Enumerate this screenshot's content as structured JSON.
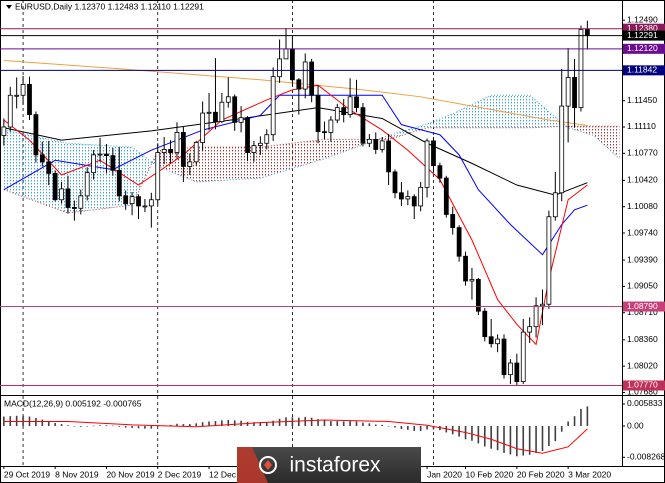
{
  "chart_data": [
    {
      "type": "candlestick",
      "title": "EURUSD,Daily  1.12370 1.12483 1.12110 1.12291",
      "categories": [
        "29 Oct 2019",
        null,
        null,
        null,
        null,
        null,
        null,
        null,
        "8 Nov 2019",
        null,
        null,
        null,
        null,
        null,
        null,
        null,
        "20 Nov 2019",
        null,
        null,
        null,
        null,
        null,
        null,
        null,
        "2 Dec 2019",
        null,
        null,
        null,
        null,
        null,
        null,
        null,
        "12 Dec 2019",
        null,
        null,
        null,
        null,
        null,
        null,
        null,
        null,
        null,
        null,
        null,
        null,
        null,
        null,
        null,
        null,
        null,
        null,
        null,
        null,
        null,
        null,
        null,
        null,
        null,
        null,
        null,
        null,
        null,
        null,
        null,
        null,
        null,
        "Jan 2020",
        null,
        null,
        null,
        null,
        null,
        "10 Feb 2020",
        null,
        null,
        null,
        null,
        null,
        null,
        null,
        "20 Feb 2020",
        null,
        null,
        null,
        null,
        null,
        null,
        null,
        "3 Mar 2020",
        null,
        null,
        null
      ],
      "open": [
        1.11,
        1.1111,
        1.1152,
        1.1152,
        1.1166,
        1.1127,
        1.1075,
        1.1066,
        1.1051,
        1.1017,
        1.1031,
        1.1007,
        1.1006,
        1.1022,
        1.1052,
        1.1075,
        1.1076,
        1.1074,
        1.1055,
        1.1022,
        1.1012,
        1.1021,
        1.1009,
        1.1009,
        1.1017,
        1.1078,
        1.1082,
        1.1078,
        1.1104,
        1.106,
        1.1066,
        1.1091,
        1.1129,
        1.113,
        1.1118,
        1.1143,
        1.115,
        1.1117,
        1.1123,
        1.1078,
        1.1087,
        1.109,
        1.1101,
        1.1176,
        1.1199,
        1.1212,
        1.1172,
        1.116,
        1.1195,
        1.1152,
        1.1105,
        1.1104,
        1.112,
        1.1136,
        1.1127,
        1.115,
        1.1136,
        1.109,
        1.1095,
        1.1082,
        1.1093,
        1.1053,
        1.1026,
        1.1018,
        1.1021,
        1.1009,
        1.1033,
        1.1093,
        1.1061,
        1.1045,
        1.0998,
        1.0981,
        1.0944,
        1.0912,
        1.0914,
        1.0873,
        1.084,
        1.0831,
        1.0837,
        1.0791,
        1.0806,
        1.0782,
        1.0846,
        1.0853,
        1.088,
        1.0882,
        1.0995,
        1.1026,
        1.1138,
        1.1175,
        1.1136,
        1.1237
      ],
      "high": [
        1.1122,
        1.1163,
        1.1175,
        1.1177,
        1.1176,
        1.1131,
        1.1092,
        1.1093,
        1.1055,
        1.104,
        1.1048,
        1.1016,
        1.103,
        1.1059,
        1.1081,
        1.1097,
        1.1089,
        1.1084,
        1.1085,
        1.1029,
        1.1027,
        1.1024,
        1.1018,
        1.1026,
        1.109,
        1.1098,
        1.1094,
        1.1117,
        1.1111,
        1.1077,
        1.1093,
        1.1144,
        1.1155,
        1.12,
        1.1155,
        1.1175,
        1.1153,
        1.1138,
        1.1125,
        1.1093,
        1.1099,
        1.1108,
        1.1188,
        1.1224,
        1.1239,
        1.1229,
        1.1174,
        1.1206,
        1.1199,
        1.1165,
        1.1118,
        1.1125,
        1.1141,
        1.1147,
        1.1174,
        1.1172,
        1.1142,
        1.1102,
        1.1104,
        1.1098,
        1.1102,
        1.1056,
        1.104,
        1.1029,
        1.1024,
        1.104,
        1.1096,
        1.1098,
        1.1065,
        1.1048,
        1.1008,
        1.0984,
        1.095,
        1.0929,
        1.0916,
        1.0877,
        1.0863,
        1.0843,
        1.0843,
        1.0811,
        1.0818,
        1.0863,
        1.0865,
        1.0891,
        1.0901,
        1.1003,
        1.1053,
        1.1186,
        1.1213,
        1.1199,
        1.1242,
        1.12483
      ],
      "low": [
        1.1087,
        1.1105,
        1.1135,
        1.114,
        1.112,
        1.1065,
        1.106,
        1.1036,
        1.1015,
        1.1012,
        1.0999,
        1.099,
        1.0998,
        1.1016,
        1.1043,
        1.1066,
        1.1051,
        1.1048,
        1.1015,
        1.1004,
        1.0997,
        1.0992,
        1.1001,
        1.0981,
        1.1011,
        1.1063,
        1.1064,
        1.107,
        1.104,
        1.1049,
        1.1061,
        1.108,
        1.1107,
        1.1108,
        1.1116,
        1.1136,
        1.1106,
        1.1104,
        1.1067,
        1.1066,
        1.1075,
        1.1082,
        1.1093,
        1.1168,
        1.1199,
        1.1164,
        1.1127,
        1.1148,
        1.1143,
        1.109,
        1.1095,
        1.1092,
        1.1116,
        1.1117,
        1.1123,
        1.113,
        1.1086,
        1.1085,
        1.1076,
        1.1078,
        1.1036,
        1.1019,
        1.1009,
        1.101,
        1.0992,
        1.1002,
        1.102,
        1.1052,
        1.1039,
        1.0994,
        1.0972,
        1.0937,
        1.0906,
        1.0888,
        1.0868,
        1.0834,
        1.0826,
        1.082,
        1.0786,
        1.0779,
        1.0777,
        1.0779,
        1.0832,
        1.0839,
        1.0855,
        1.0876,
        1.099,
        1.1015,
        1.1091,
        1.111,
        1.1131,
        1.1211
      ],
      "close": [
        1.1111,
        1.1152,
        1.1152,
        1.1166,
        1.1127,
        1.1075,
        1.1066,
        1.1051,
        1.1017,
        1.1031,
        1.1007,
        1.1006,
        1.1022,
        1.1052,
        1.1075,
        1.1076,
        1.1074,
        1.1055,
        1.1022,
        1.1012,
        1.1021,
        1.1009,
        1.1009,
        1.1017,
        1.1078,
        1.1082,
        1.1078,
        1.1104,
        1.106,
        1.1066,
        1.1091,
        1.1129,
        1.113,
        1.1118,
        1.1143,
        1.115,
        1.1117,
        1.1123,
        1.1078,
        1.1087,
        1.109,
        1.1101,
        1.1176,
        1.1199,
        1.1212,
        1.1172,
        1.116,
        1.1195,
        1.1152,
        1.1105,
        1.1104,
        1.112,
        1.1136,
        1.1127,
        1.115,
        1.1136,
        1.109,
        1.1095,
        1.1082,
        1.1093,
        1.1053,
        1.1026,
        1.1018,
        1.1021,
        1.1009,
        1.1033,
        1.1093,
        1.1061,
        1.1045,
        1.0998,
        1.0981,
        1.0944,
        1.0912,
        1.0914,
        1.0873,
        1.084,
        1.0831,
        1.0837,
        1.0791,
        1.0806,
        1.0782,
        1.0846,
        1.0853,
        1.088,
        1.0882,
        1.0995,
        1.1026,
        1.1138,
        1.1175,
        1.1136,
        1.1237,
        1.12291
      ],
      "bull_color": "#ffffff",
      "bear_color": "#000000",
      "outline_color": "#000000",
      "xlim": [
        -0.6,
        96.4
      ],
      "ylim": [
        1.0766,
        1.1257
      ],
      "yticks": [
        {
          "value": 1.1249,
          "label": "1.12490"
        },
        {
          "value": 1.1145,
          "label": "1.11450"
        },
        {
          "value": 1.1111,
          "label": "1.11110"
        },
        {
          "value": 1.1077,
          "label": "1.10770"
        },
        {
          "value": 1.1042,
          "label": "1.10420"
        },
        {
          "value": 1.1008,
          "label": "1.10080"
        },
        {
          "value": 1.0974,
          "label": "1.09740"
        },
        {
          "value": 1.0939,
          "label": "1.09390"
        },
        {
          "value": 1.0905,
          "label": "1.09050"
        },
        {
          "value": 1.0871,
          "label": "1.08710"
        },
        {
          "value": 1.0836,
          "label": "1.08360"
        },
        {
          "value": 1.0802,
          "label": "1.08020"
        },
        {
          "value": 1.0768,
          "label": "1.07680"
        }
      ],
      "grid": false,
      "xlines": [
        3,
        24,
        45,
        67
      ],
      "levels": [
        {
          "value": 1.1238,
          "label": "1.12380",
          "color": "#8b1a5a"
        },
        {
          "value": 1.12291,
          "label": "1.12291",
          "color": "#000000"
        },
        {
          "value": 1.1212,
          "label": "1.12120",
          "color": "#6a0d91"
        },
        {
          "value": 1.11842,
          "label": "1.11842",
          "color": "#000080"
        },
        {
          "value": 1.0879,
          "label": "1.08790",
          "color": "#c8407a"
        },
        {
          "value": 1.0777,
          "label": "1.07770",
          "color": "#c0305a"
        }
      ],
      "cloud": {
        "x": [
          0,
          10,
          20,
          24,
          30,
          40,
          50,
          60,
          66,
          70,
          76,
          82,
          88,
          92,
          96
        ],
        "a": [
          1.1107,
          1.109,
          1.1085,
          1.106,
          1.104,
          1.1045,
          1.107,
          1.11,
          1.1115,
          1.1128,
          1.1152,
          1.1152,
          1.111,
          1.11,
          1.107
        ],
        "b": [
          1.103,
          1.1,
          1.101,
          1.108,
          1.1085,
          1.1085,
          1.1095,
          1.1095,
          1.111,
          1.111,
          1.111,
          1.111,
          1.1112,
          1.1112,
          1.1112
        ],
        "up_color": "#3aa0e8",
        "down_color": "#b03030"
      },
      "series": [
        {
          "color": "#f0a040",
          "x": [
            0,
            20,
            40,
            55,
            65,
            75,
            85,
            91
          ],
          "values": [
            1.1197,
            1.1185,
            1.1172,
            1.116,
            1.115,
            1.1135,
            1.112,
            1.1113
          ]
        },
        {
          "color": "#000000",
          "x": [
            0,
            9,
            23,
            38,
            49,
            59,
            66,
            73,
            80,
            86,
            91
          ],
          "values": [
            1.111,
            1.1094,
            1.1106,
            1.1123,
            1.1136,
            1.1122,
            1.109,
            1.1064,
            1.1036,
            1.1023,
            1.1039
          ]
        },
        {
          "color": "#0000ff",
          "x": [
            0,
            8,
            17,
            23,
            31,
            40,
            43,
            59,
            62,
            68,
            71,
            74,
            79,
            84,
            87,
            89,
            91
          ],
          "values": [
            1.103,
            1.1068,
            1.1056,
            1.1081,
            1.1107,
            1.1126,
            1.1152,
            1.1152,
            1.1114,
            1.1101,
            1.1075,
            1.103,
            1.0985,
            1.0946,
            1.0985,
            1.1004,
            1.101
          ]
        },
        {
          "color": "#ff0000",
          "x": [
            0,
            4,
            9,
            15,
            21,
            28,
            34,
            41,
            45,
            49,
            54,
            59,
            63,
            68,
            73,
            77,
            80,
            83,
            85,
            88,
            91
          ],
          "values": [
            1.112,
            1.1094,
            1.1049,
            1.1068,
            1.1036,
            1.1075,
            1.112,
            1.1146,
            1.1159,
            1.1165,
            1.1133,
            1.1107,
            1.1081,
            1.1043,
            1.0965,
            1.0888,
            1.0856,
            1.083,
            1.0914,
            1.1017,
            1.1036
          ]
        }
      ]
    },
    {
      "type": "macd",
      "title": "MACD(12,26,9) 0.005192 -0.000765",
      "values": [
        0.0025,
        0.0026,
        0.0027,
        0.0027,
        0.0025,
        0.0021,
        0.0017,
        0.0013,
        0.0008,
        0.0005,
        0.0002,
        -0.0001,
        -0.0002,
        -0.0001,
        0.0001,
        0.0002,
        0.0002,
        0.0001,
        -0.0002,
        -0.0004,
        -0.0005,
        -0.0006,
        -0.0007,
        -0.0007,
        -0.0002,
        0.0001,
        0.0003,
        0.0006,
        0.0005,
        0.0005,
        0.0007,
        0.001,
        0.0012,
        0.0013,
        0.0015,
        0.0016,
        0.0015,
        0.0014,
        0.0011,
        0.001,
        0.0009,
        0.0009,
        0.0014,
        0.0019,
        0.0023,
        0.0023,
        0.0022,
        0.0024,
        0.0022,
        0.0018,
        0.0015,
        0.0013,
        0.0013,
        0.0012,
        0.0013,
        0.0012,
        0.0009,
        0.0007,
        0.0004,
        0.0003,
        0,
        -0.0004,
        -0.0008,
        -0.001,
        -0.0013,
        -0.0013,
        -0.0009,
        -0.0009,
        -0.0011,
        -0.0017,
        -0.0022,
        -0.0028,
        -0.0035,
        -0.0039,
        -0.0046,
        -0.0054,
        -0.006,
        -0.0064,
        -0.0071,
        -0.0075,
        -0.008,
        -0.0078,
        -0.0076,
        -0.0071,
        -0.0066,
        -0.0053,
        -0.004,
        -0.0015,
        0.0012,
        0.0026,
        0.0045,
        0.005192
      ],
      "color": "#404040",
      "signal": {
        "color": "#ff0000",
        "x": [
          0,
          10,
          20,
          30,
          40,
          50,
          60,
          66,
          72,
          76,
          80,
          84,
          88,
          91
        ],
        "values": [
          0.0012,
          0.0012,
          0.0003,
          -0.0002,
          0.0009,
          0.0016,
          0.0012,
          0.0002,
          -0.0017,
          -0.0035,
          -0.006,
          -0.0072,
          -0.0055,
          -0.000765
        ]
      },
      "ylim": [
        -0.0103,
        0.0074
      ],
      "yticks": [
        0.005833,
        {
          "value": 0,
          "label": "0.00"
        },
        -0.008268
      ]
    }
  ],
  "watermark": "instaforex"
}
